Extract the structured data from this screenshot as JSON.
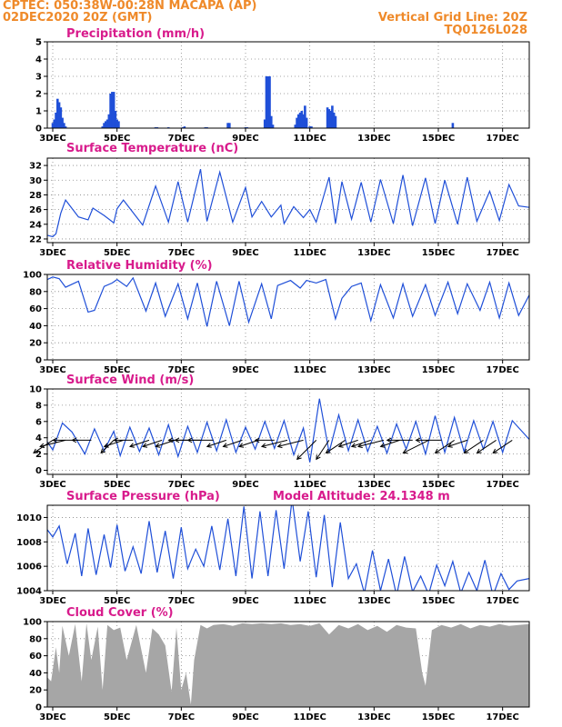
{
  "header": {
    "line1": "CPTEC:   050:38W-00:28N   MACAPA (AP)",
    "line2": "02DEC2020 20Z (GMT)",
    "grid_note": "Vertical Grid Line: 20Z",
    "code": "TQ0126L028"
  },
  "x_axis": {
    "range_days": [
      2.83,
      17.83
    ],
    "ticks": [
      {
        "day": 3,
        "label": "3DEC"
      },
      {
        "day": 5,
        "label": "5DEC"
      },
      {
        "day": 7,
        "label": "7DEC"
      },
      {
        "day": 9,
        "label": "9DEC"
      },
      {
        "day": 11,
        "label": "11DEC"
      },
      {
        "day": 13,
        "label": "13DEC"
      },
      {
        "day": 15,
        "label": "15DEC"
      },
      {
        "day": 17,
        "label": "17DEC"
      }
    ]
  },
  "model_altitude": "Model Altitude: 24.1348 m",
  "colors": {
    "header": "#ef8a2a",
    "title": "#d81b8c",
    "line": "#1f4fd8",
    "bar": "#1f4fd8",
    "cloud": "#a6a6a6",
    "arrow": "#000000"
  },
  "chart_data": [
    {
      "id": "precip",
      "type": "bar",
      "title": "Precipitation (mm/h)",
      "ylim": [
        0,
        5
      ],
      "yticks": [
        0,
        1,
        2,
        3,
        4,
        5
      ],
      "x": [
        3.0,
        3.05,
        3.1,
        3.15,
        3.2,
        3.25,
        3.3,
        3.35,
        3.4,
        4.55,
        4.6,
        4.65,
        4.7,
        4.75,
        4.8,
        4.85,
        4.9,
        4.95,
        5.0,
        5.05,
        6.2,
        6.25,
        6.6,
        7.05,
        7.1,
        7.75,
        7.8,
        8.45,
        8.5,
        9.0,
        9.05,
        9.6,
        9.65,
        9.7,
        9.75,
        9.8,
        9.85,
        10.55,
        10.6,
        10.65,
        10.7,
        10.75,
        10.8,
        10.85,
        10.9,
        11.0,
        11.05,
        11.55,
        11.6,
        11.65,
        11.7,
        11.75,
        11.8,
        15.45
      ],
      "values": [
        0.3,
        0.5,
        0.9,
        1.7,
        1.5,
        1.2,
        0.6,
        0.3,
        0.1,
        0.1,
        0.3,
        0.4,
        0.5,
        0.8,
        2.0,
        2.1,
        2.1,
        1.0,
        0.5,
        0.4,
        0.05,
        0.05,
        0.05,
        0.05,
        0.1,
        0.05,
        0.05,
        0.3,
        0.3,
        0.05,
        0.05,
        0.5,
        3.0,
        3.0,
        3.0,
        0.7,
        0.2,
        0.2,
        0.6,
        0.8,
        0.9,
        1.0,
        0.8,
        1.3,
        0.6,
        0.1,
        0.1,
        1.2,
        1.1,
        1.0,
        1.3,
        0.9,
        0.7,
        0.3
      ]
    },
    {
      "id": "temp",
      "type": "line",
      "title": "Surface Temperature (nC)",
      "ylim": [
        21.5,
        33
      ],
      "yticks": [
        22,
        24,
        26,
        28,
        30,
        32
      ],
      "x": [
        2.83,
        3.0,
        3.1,
        3.25,
        3.4,
        3.8,
        4.1,
        4.25,
        4.6,
        4.9,
        5.0,
        5.2,
        5.8,
        6.2,
        6.6,
        6.9,
        7.2,
        7.6,
        7.8,
        8.2,
        8.6,
        9.0,
        9.2,
        9.5,
        9.8,
        10.1,
        10.2,
        10.5,
        10.8,
        11.0,
        11.2,
        11.6,
        11.8,
        12.0,
        12.3,
        12.6,
        12.9,
        13.2,
        13.6,
        13.9,
        14.2,
        14.6,
        14.9,
        15.2,
        15.6,
        15.9,
        16.2,
        16.6,
        16.9,
        17.2,
        17.5,
        17.83
      ],
      "values": [
        22.5,
        22.3,
        22.7,
        25.5,
        27.3,
        25,
        24.6,
        26.2,
        25.2,
        24.2,
        26.1,
        27.3,
        23.9,
        29.2,
        24.3,
        29.8,
        24.3,
        31.5,
        24.4,
        31.1,
        24.3,
        29,
        25,
        27.1,
        25,
        26.6,
        24.1,
        26.4,
        24.9,
        26,
        24.3,
        30.4,
        24.1,
        29.8,
        24.7,
        29.7,
        24.3,
        30.1,
        24.1,
        30.7,
        23.8,
        30.3,
        24.1,
        30,
        24,
        30.4,
        24.4,
        28.5,
        24.5,
        29.4,
        26.5,
        26.3
      ]
    },
    {
      "id": "rh",
      "type": "line",
      "title": "Relative Humidity (%)",
      "ylim": [
        0,
        100
      ],
      "yticks": [
        0,
        20,
        40,
        60,
        80,
        100
      ],
      "x": [
        2.83,
        3.0,
        3.2,
        3.4,
        3.8,
        4.1,
        4.3,
        4.6,
        4.85,
        5.0,
        5.3,
        5.5,
        5.9,
        6.2,
        6.5,
        6.9,
        7.2,
        7.5,
        7.8,
        8.1,
        8.5,
        8.8,
        9.1,
        9.5,
        9.8,
        10.0,
        10.4,
        10.7,
        10.9,
        11.2,
        11.5,
        11.8,
        12.0,
        12.3,
        12.6,
        12.9,
        13.2,
        13.6,
        13.9,
        14.2,
        14.6,
        14.9,
        15.3,
        15.6,
        15.9,
        16.3,
        16.6,
        16.9,
        17.2,
        17.5,
        17.83
      ],
      "values": [
        94,
        97,
        95,
        85,
        92,
        56,
        58,
        86,
        90,
        94,
        86,
        96,
        57,
        90,
        51,
        89,
        48,
        90,
        39,
        92,
        40,
        92,
        44,
        89,
        48,
        87,
        93,
        84,
        93,
        90,
        94,
        48,
        72,
        86,
        90,
        46,
        88,
        49,
        89,
        51,
        88,
        52,
        91,
        54,
        89,
        58,
        91,
        49,
        90,
        52,
        76
      ]
    },
    {
      "id": "wind",
      "type": "line",
      "title": "Surface Wind (m/s)",
      "ylim": [
        -0.5,
        10
      ],
      "yticks": [
        0,
        2,
        4,
        6,
        8,
        10
      ],
      "x": [
        2.83,
        3.0,
        3.3,
        3.6,
        4.0,
        4.3,
        4.6,
        4.9,
        5.1,
        5.4,
        5.7,
        6.0,
        6.3,
        6.6,
        6.9,
        7.2,
        7.5,
        7.8,
        8.1,
        8.4,
        8.7,
        9.0,
        9.3,
        9.6,
        9.9,
        10.2,
        10.5,
        10.8,
        11.0,
        11.3,
        11.6,
        11.9,
        12.2,
        12.5,
        12.8,
        13.1,
        13.4,
        13.7,
        14.0,
        14.3,
        14.6,
        14.9,
        15.2,
        15.5,
        15.8,
        16.1,
        16.4,
        16.7,
        17.0,
        17.3,
        17.83
      ],
      "values": [
        3.5,
        2.5,
        5.8,
        4.7,
        2.0,
        5.1,
        2.4,
        4.8,
        1.8,
        5.3,
        2.3,
        5.2,
        1.9,
        5.6,
        1.7,
        5.4,
        2.2,
        5.9,
        2.4,
        6.2,
        2.2,
        5.3,
        2.6,
        6.0,
        2.7,
        6.1,
        1.9,
        5.2,
        1.0,
        8.8,
        2.2,
        6.8,
        2.4,
        6.2,
        2.3,
        5.4,
        2.1,
        5.7,
        2.6,
        6.0,
        2.0,
        6.7,
        2.2,
        6.5,
        2.3,
        6.1,
        2.6,
        6.0,
        2.2,
        6.1,
        3.8
      ],
      "arrows_x": [
        3.0,
        3.4,
        3.8,
        4.2,
        4.9,
        5.2,
        5.5,
        6.0,
        6.4,
        6.8,
        7.2,
        7.6,
        8.0,
        8.4,
        8.9,
        9.4,
        9.9,
        10.3,
        10.8,
        11.2,
        11.6,
        12.1,
        12.5,
        12.9,
        13.3,
        13.8,
        14.2,
        14.7,
        15.1,
        15.5,
        15.9,
        16.4,
        16.8,
        17.3
      ],
      "arrows_u": [
        -3,
        -4,
        -4,
        -3,
        -2,
        -3,
        -3,
        -3,
        -3,
        -3,
        -3,
        -4,
        -4,
        -3,
        -3,
        -3,
        -3,
        -4,
        -4,
        -3,
        -2,
        -3,
        -3,
        -3,
        -4,
        -3,
        -4,
        -4,
        -4,
        -3,
        -3,
        -3,
        -3,
        -3
      ],
      "arrows_v": [
        -2,
        -1,
        0,
        0,
        -2,
        -1,
        0,
        -1,
        -1,
        -1,
        0,
        0,
        0,
        -1,
        -1,
        -1,
        0,
        -1,
        -1,
        -3,
        -3,
        -2,
        -1,
        -1,
        -1,
        -1,
        0,
        -2,
        0,
        -2,
        -1,
        -2,
        -2,
        -2
      ]
    },
    {
      "id": "pres",
      "type": "line",
      "title": "Surface Pressure (hPa)",
      "ylim": [
        1004,
        1011
      ],
      "yticks": [
        1004,
        1006,
        1008,
        1010
      ],
      "x": [
        2.83,
        3.0,
        3.2,
        3.45,
        3.7,
        3.9,
        4.1,
        4.35,
        4.6,
        4.8,
        5.0,
        5.25,
        5.5,
        5.75,
        6.0,
        6.25,
        6.5,
        6.75,
        7.0,
        7.2,
        7.45,
        7.7,
        7.95,
        8.2,
        8.45,
        8.7,
        8.95,
        9.2,
        9.45,
        9.7,
        9.95,
        10.2,
        10.45,
        10.7,
        10.95,
        11.2,
        11.45,
        11.7,
        11.95,
        12.2,
        12.45,
        12.7,
        12.95,
        13.2,
        13.45,
        13.7,
        13.95,
        14.2,
        14.45,
        14.7,
        14.95,
        15.2,
        15.45,
        15.7,
        15.95,
        16.2,
        16.45,
        16.7,
        16.95,
        17.2,
        17.45,
        17.83
      ],
      "values": [
        1009,
        1008.4,
        1009.3,
        1006.2,
        1008.7,
        1005.2,
        1009.1,
        1005.3,
        1008.6,
        1005.9,
        1009.4,
        1005.6,
        1007.6,
        1005.4,
        1009.7,
        1005.5,
        1008.9,
        1005.0,
        1009.2,
        1005.8,
        1007.4,
        1006.0,
        1009.3,
        1005.7,
        1009.9,
        1005.2,
        1010.9,
        1005.0,
        1010.5,
        1005.2,
        1010.6,
        1005.8,
        1011.5,
        1006.4,
        1010.5,
        1005.1,
        1010.2,
        1004.3,
        1009.6,
        1005.0,
        1006.2,
        1003.8,
        1007.3,
        1004.0,
        1006.6,
        1003.6,
        1006.8,
        1003.9,
        1005.2,
        1003.7,
        1006.1,
        1004.4,
        1006.4,
        1003.8,
        1005.5,
        1004.0,
        1006.5,
        1003.6,
        1005.4,
        1004.1,
        1004.8,
        1005.0
      ]
    },
    {
      "id": "cloud",
      "type": "area",
      "title": "Cloud Cover (%)",
      "ylim": [
        0,
        100
      ],
      "yticks": [
        0,
        20,
        40,
        60,
        80,
        100
      ],
      "x": [
        2.83,
        2.95,
        3.1,
        3.2,
        3.3,
        3.5,
        3.7,
        3.9,
        4.05,
        4.2,
        4.4,
        4.55,
        4.7,
        4.9,
        5.1,
        5.3,
        5.6,
        5.9,
        6.1,
        6.3,
        6.5,
        6.7,
        6.85,
        7.0,
        7.15,
        7.3,
        7.4,
        7.6,
        7.8,
        8.0,
        8.3,
        8.6,
        8.9,
        9.2,
        9.5,
        9.8,
        10.1,
        10.4,
        10.7,
        11.0,
        11.3,
        11.6,
        11.9,
        12.2,
        12.5,
        12.8,
        13.1,
        13.4,
        13.7,
        14.0,
        14.3,
        14.5,
        14.6,
        14.8,
        15.1,
        15.4,
        15.7,
        16.0,
        16.3,
        16.6,
        16.9,
        17.2,
        17.5,
        17.83
      ],
      "values": [
        35,
        30,
        70,
        40,
        95,
        60,
        97,
        30,
        98,
        55,
        94,
        20,
        96,
        90,
        93,
        55,
        96,
        40,
        92,
        85,
        72,
        18,
        93,
        20,
        40,
        3,
        55,
        96,
        92,
        96,
        97,
        95,
        98,
        97,
        98,
        97,
        98,
        96,
        97,
        95,
        98,
        85,
        96,
        92,
        97,
        90,
        95,
        88,
        96,
        93,
        92,
        40,
        25,
        90,
        96,
        93,
        97,
        92,
        96,
        94,
        97,
        95,
        96,
        97
      ]
    }
  ]
}
